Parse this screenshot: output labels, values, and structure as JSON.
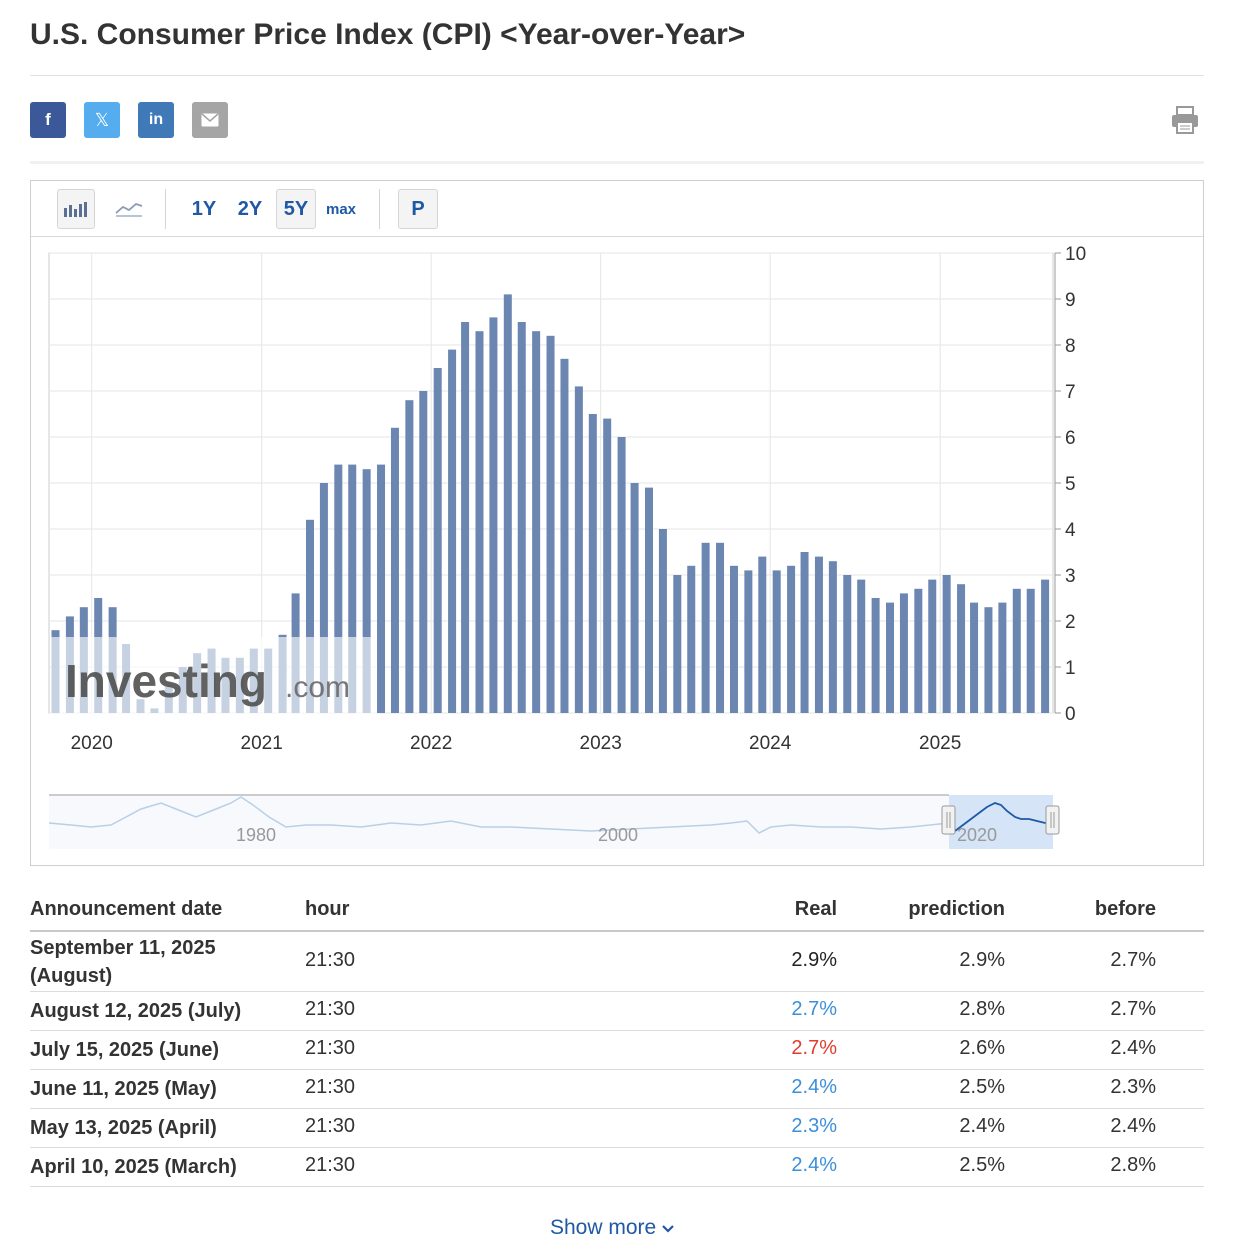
{
  "page": {
    "title": "U.S. Consumer Price Index (CPI) <Year-over-Year>"
  },
  "share": {
    "facebook_label": "f",
    "x_label": "𝕏",
    "linkedin_label": "in"
  },
  "toolbar": {
    "ranges": [
      "1Y",
      "2Y",
      "5Y",
      "max"
    ],
    "active_range": "5Y",
    "p_label": "P"
  },
  "colors": {
    "bar": "#6a86b1",
    "accent_blue": "#3b8fd9",
    "accent_red": "#e23c2e",
    "link": "#1f58a4"
  },
  "watermark": {
    "text": "Investing",
    "suffix": ".com"
  },
  "chart_data": {
    "type": "bar",
    "ylim": [
      0,
      10
    ],
    "y_ticks": [
      0,
      1,
      2,
      3,
      4,
      5,
      6,
      7,
      8,
      9,
      10
    ],
    "y_axis_position": "right",
    "x_tick_labels": [
      "2020",
      "2021",
      "2022",
      "2023",
      "2024",
      "2025"
    ],
    "grid": true,
    "x": [
      "2019-10",
      "2019-11",
      "2019-12",
      "2020-01",
      "2020-02",
      "2020-03",
      "2020-04",
      "2020-05",
      "2020-06",
      "2020-07",
      "2020-08",
      "2020-09",
      "2020-10",
      "2020-11",
      "2020-12",
      "2021-01",
      "2021-02",
      "2021-03",
      "2021-04",
      "2021-05",
      "2021-06",
      "2021-07",
      "2021-08",
      "2021-09",
      "2021-10",
      "2021-11",
      "2021-12",
      "2022-01",
      "2022-02",
      "2022-03",
      "2022-04",
      "2022-05",
      "2022-06",
      "2022-07",
      "2022-08",
      "2022-09",
      "2022-10",
      "2022-11",
      "2022-12",
      "2023-01",
      "2023-02",
      "2023-03",
      "2023-04",
      "2023-05",
      "2023-06",
      "2023-07",
      "2023-08",
      "2023-09",
      "2023-10",
      "2023-11",
      "2023-12",
      "2024-01",
      "2024-02",
      "2024-03",
      "2024-04",
      "2024-05",
      "2024-06",
      "2024-07",
      "2024-08",
      "2024-09",
      "2024-10",
      "2024-11",
      "2024-12",
      "2025-01",
      "2025-02",
      "2025-03",
      "2025-04",
      "2025-05",
      "2025-06",
      "2025-07",
      "2025-08"
    ],
    "values": [
      1.8,
      2.1,
      2.3,
      2.5,
      2.3,
      1.5,
      0.3,
      0.1,
      0.6,
      1.0,
      1.3,
      1.4,
      1.2,
      1.2,
      1.4,
      1.4,
      1.7,
      2.6,
      4.2,
      5.0,
      5.4,
      5.4,
      5.3,
      5.4,
      6.2,
      6.8,
      7.0,
      7.5,
      7.9,
      8.5,
      8.3,
      8.6,
      9.1,
      8.5,
      8.3,
      8.2,
      7.7,
      7.1,
      6.5,
      6.4,
      6.0,
      5.0,
      4.9,
      4.0,
      3.0,
      3.2,
      3.7,
      3.7,
      3.2,
      3.1,
      3.4,
      3.1,
      3.2,
      3.5,
      3.4,
      3.3,
      3.0,
      2.9,
      2.5,
      2.4,
      2.6,
      2.7,
      2.9,
      3.0,
      2.8,
      2.4,
      2.3,
      2.4,
      2.7,
      2.7,
      2.9
    ]
  },
  "navigator": {
    "labels": [
      "1980",
      "2000",
      "2020"
    ]
  },
  "table": {
    "headers": {
      "date": "Announcement date",
      "hour": "hour",
      "real": "Real",
      "prediction": "prediction",
      "before": "before"
    },
    "rows": [
      {
        "date_line1": "September 11, 2025",
        "date_line2": "(August)",
        "hour": "21:30",
        "real": "2.9%",
        "real_color": "#222222",
        "prediction": "2.9%",
        "before": "2.7%"
      },
      {
        "date_line1": "August 12, 2025 (July)",
        "date_line2": "",
        "hour": "21:30",
        "real": "2.7%",
        "real_color": "#3b8fd9",
        "prediction": "2.8%",
        "before": "2.7%"
      },
      {
        "date_line1": "July 15, 2025 (June)",
        "date_line2": "",
        "hour": "21:30",
        "real": "2.7%",
        "real_color": "#e23c2e",
        "prediction": "2.6%",
        "before": "2.4%"
      },
      {
        "date_line1": "June 11, 2025 (May)",
        "date_line2": "",
        "hour": "21:30",
        "real": "2.4%",
        "real_color": "#3b8fd9",
        "prediction": "2.5%",
        "before": "2.3%"
      },
      {
        "date_line1": "May 13, 2025 (April)",
        "date_line2": "",
        "hour": "21:30",
        "real": "2.3%",
        "real_color": "#3b8fd9",
        "prediction": "2.4%",
        "before": "2.4%"
      },
      {
        "date_line1": "April 10, 2025 (March)",
        "date_line2": "",
        "hour": "21:30",
        "real": "2.4%",
        "real_color": "#3b8fd9",
        "prediction": "2.5%",
        "before": "2.8%"
      }
    ],
    "show_more": "Show more"
  }
}
